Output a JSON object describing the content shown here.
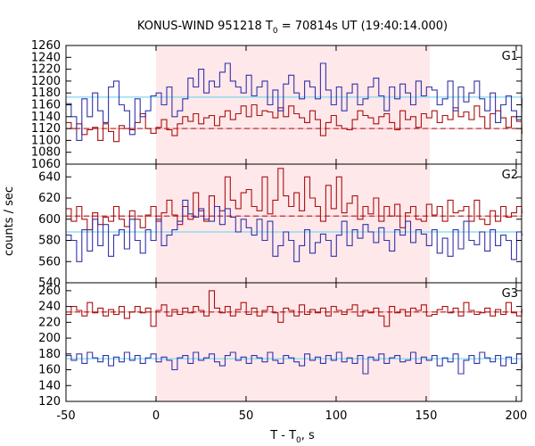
{
  "chart_data": {
    "type": "line",
    "title": "KONUS-WIND 951218 T",
    "title_sub": "0",
    "title_tail": " = 70814s UT (19:40:14.000)",
    "xlabel": "T - T",
    "xlabel_sub": "0",
    "xlabel_tail": ", s",
    "ylabel": "counts / sec",
    "xlim": [
      -50,
      203
    ],
    "x_ticks": [
      -50,
      0,
      50,
      100,
      150,
      200
    ],
    "highlight_interval": [
      0,
      152
    ],
    "highlight_color": "#ffe8ea",
    "bin_width": 2.944,
    "x_start": -50,
    "series_colors": {
      "red": "#aa1111",
      "blue": "#3333aa",
      "red_fit": "#aa1111",
      "red_mean": "#f2a0a8",
      "blue_mean": "#7fd8f0"
    },
    "panels": [
      {
        "name": "G1",
        "ylim": [
          1060,
          1260
        ],
        "y_ticks": [
          1060,
          1080,
          1100,
          1120,
          1140,
          1160,
          1180,
          1200,
          1220,
          1240,
          1260
        ],
        "red_mean": 1120,
        "blue_mean": 1173,
        "series": [
          {
            "color": "red",
            "values": [
              1130,
              1120,
              1128,
              1110,
              1118,
              1122,
              1100,
              1128,
              1115,
              1098,
              1125,
              1120,
              1118,
              1130,
              1145,
              1120,
              1112,
              1122,
              1135,
              1118,
              1108,
              1128,
              1140,
              1132,
              1145,
              1128,
              1138,
              1142,
              1125,
              1140,
              1150,
              1135,
              1145,
              1158,
              1140,
              1160,
              1142,
              1150,
              1148,
              1138,
              1155,
              1140,
              1158,
              1145,
              1138,
              1130,
              1150,
              1135,
              1108,
              1130,
              1142,
              1125,
              1120,
              1118,
              1135,
              1150,
              1142,
              1138,
              1128,
              1140,
              1145,
              1130,
              1118,
              1150,
              1135,
              1140,
              1122,
              1145,
              1138,
              1150,
              1130,
              1142,
              1135,
              1155,
              1140,
              1148,
              1135,
              1158,
              1140,
              1120,
              1145,
              1150,
              1138,
              1122,
              1140,
              1132,
              1112
            ]
          },
          {
            "color": "blue",
            "values": [
              1162,
              1140,
              1100,
              1170,
              1140,
              1180,
              1150,
              1130,
              1190,
              1200,
              1160,
              1150,
              1110,
              1170,
              1140,
              1150,
              1175,
              1180,
              1160,
              1190,
              1140,
              1150,
              1170,
              1205,
              1190,
              1220,
              1180,
              1200,
              1190,
              1215,
              1230,
              1200,
              1190,
              1180,
              1210,
              1175,
              1190,
              1200,
              1160,
              1185,
              1150,
              1195,
              1210,
              1180,
              1170,
              1200,
              1190,
              1170,
              1230,
              1185,
              1160,
              1190,
              1150,
              1180,
              1195,
              1160,
              1170,
              1190,
              1205,
              1175,
              1150,
              1190,
              1170,
              1195,
              1180,
              1160,
              1200,
              1175,
              1190,
              1185,
              1160,
              1170,
              1200,
              1150,
              1190,
              1165,
              1180,
              1200,
              1170,
              1150,
              1180,
              1130,
              1160,
              1175,
              1150,
              1135,
              1170
            ]
          }
        ]
      },
      {
        "name": "G2",
        "ylim": [
          540,
          652
        ],
        "y_ticks": [
          540,
          560,
          580,
          600,
          620,
          640
        ],
        "red_mean": 603,
        "blue_mean": 588,
        "series": [
          {
            "color": "red",
            "values": [
              610,
              598,
              612,
              600,
              590,
              606,
              595,
              602,
              598,
              612,
              600,
              593,
              608,
              600,
              592,
              604,
              612,
              598,
              606,
              618,
              604,
              595,
              612,
              600,
              625,
              608,
              598,
              622,
              612,
              608,
              640,
              618,
              610,
              625,
              628,
              612,
              608,
              640,
              605,
              618,
              648,
              622,
              612,
              625,
              608,
              640,
              620,
              612,
              598,
              632,
              610,
              640,
              606,
              615,
              622,
              600,
              612,
              605,
              620,
              598,
              612,
              603,
              614,
              592,
              606,
              612,
              600,
              598,
              614,
              604,
              612,
              598,
              618,
              606,
              608,
              612,
              598,
              618,
              600,
              595,
              608,
              598,
              612,
              602,
              606,
              612,
              606
            ]
          },
          {
            "color": "blue",
            "values": [
              585,
              580,
              560,
              590,
              570,
              600,
              575,
              595,
              565,
              585,
              590,
              572,
              600,
              580,
              568,
              590,
              580,
              600,
              575,
              585,
              590,
              598,
              618,
              605,
              602,
              610,
              600,
              598,
              612,
              595,
              610,
              602,
              588,
              600,
              592,
              585,
              600,
              580,
              598,
              565,
              575,
              588,
              580,
              560,
              575,
              590,
              568,
              578,
              586,
              580,
              565,
              585,
              598,
              575,
              590,
              582,
              595,
              588,
              578,
              592,
              580,
              570,
              590,
              585,
              598,
              578,
              590,
              586,
              575,
              590,
              568,
              582,
              565,
              590,
              572,
              598,
              580,
              576,
              588,
              570,
              590,
              575,
              585,
              580,
              562,
              588,
              585
            ]
          }
        ]
      },
      {
        "name": "G3",
        "ylim": [
          120,
          270
        ],
        "y_ticks": [
          120,
          140,
          160,
          180,
          200,
          220,
          240,
          260
        ],
        "red_mean": 233,
        "blue_mean": 174,
        "series": [
          {
            "color": "red",
            "values": [
              230,
              240,
              235,
              228,
              245,
              232,
              238,
              228,
              236,
              230,
              240,
              225,
              233,
              240,
              232,
              238,
              215,
              235,
              242,
              228,
              236,
              230,
              238,
              232,
              240,
              235,
              228,
              260,
              238,
              232,
              240,
              228,
              236,
              245,
              230,
              238,
              228,
              235,
              240,
              232,
              220,
              238,
              235,
              228,
              242,
              230,
              236,
              232,
              238,
              228,
              240,
              235,
              230,
              236,
              242,
              228,
              235,
              232,
              238,
              228,
              215,
              240,
              232,
              236,
              228,
              238,
              235,
              242,
              228,
              230,
              236,
              240,
              232,
              238,
              228,
              245,
              235,
              230,
              232,
              238,
              228,
              236,
              230,
              245,
              232,
              228,
              236
            ]
          },
          {
            "color": "blue",
            "values": [
              178,
              172,
              180,
              168,
              182,
              175,
              170,
              178,
              165,
              176,
              170,
              182,
              172,
              178,
              168,
              175,
              180,
              170,
              176,
              172,
              160,
              175,
              178,
              168,
              182,
              172,
              175,
              180,
              170,
              165,
              178,
              182,
              172,
              176,
              168,
              178,
              175,
              170,
              182,
              172,
              168,
              178,
              175,
              170,
              165,
              180,
              172,
              176,
              168,
              178,
              172,
              182,
              170,
              175,
              168,
              178,
              155,
              176,
              172,
              180,
              168,
              175,
              178,
              170,
              172,
              182,
              168,
              176,
              172,
              178,
              165,
              175,
              170,
              180,
              155,
              172,
              178,
              168,
              182,
              175,
              170,
              178,
              165,
              176,
              168,
              180,
              162
            ]
          }
        ]
      }
    ]
  }
}
